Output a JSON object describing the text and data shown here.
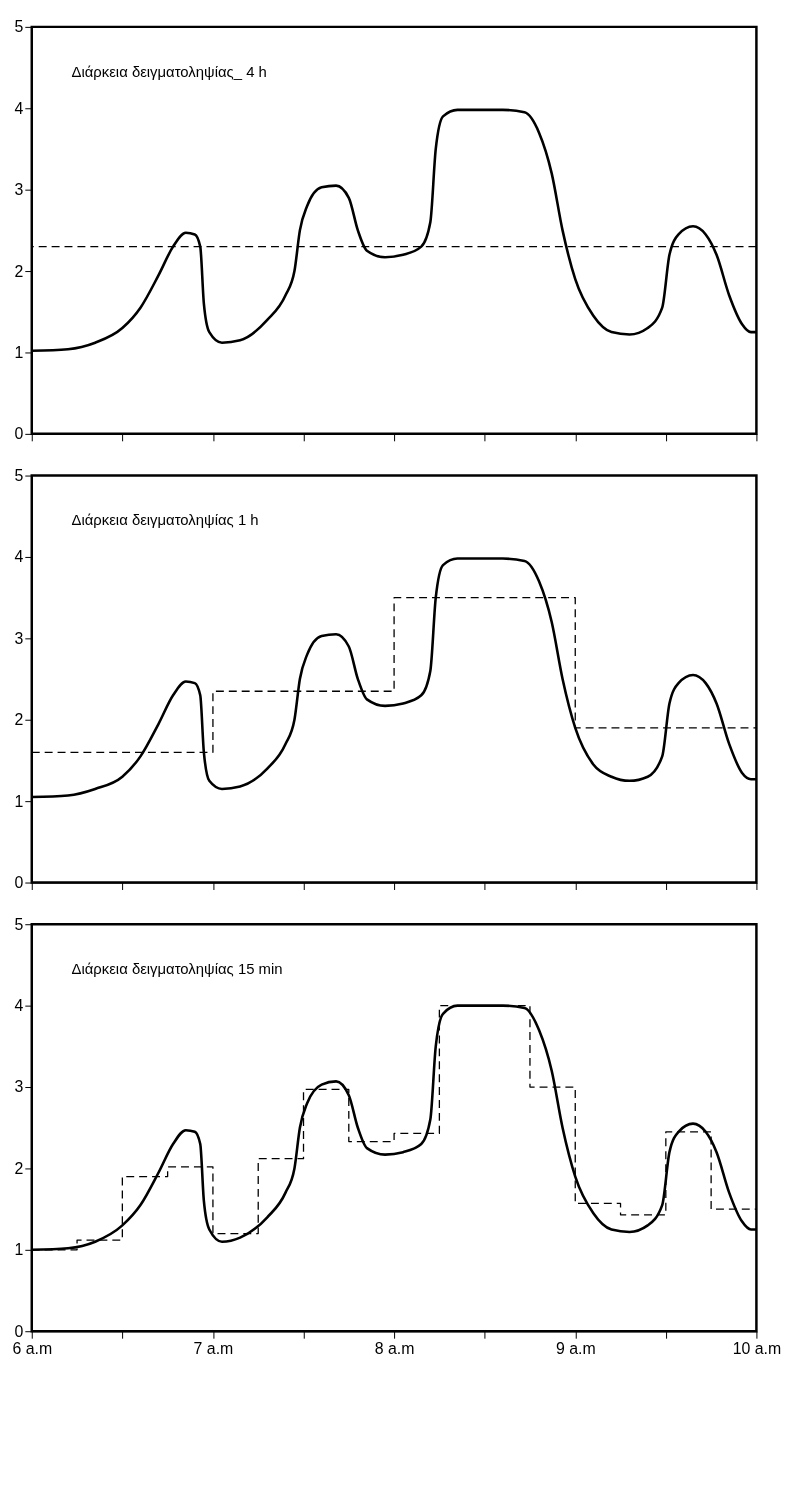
{
  "chart_data": [
    {
      "type": "line",
      "annotations": [
        "Διάρκεια  δειγματοληψίας_ 4 h"
      ],
      "xlim": [
        6,
        10
      ],
      "ylim": [
        0,
        5
      ],
      "yticks": [
        0,
        1,
        2,
        3,
        4,
        5
      ],
      "xticks": [
        {
          "value": 6,
          "label": null
        },
        {
          "value": 6.5,
          "label": null
        },
        {
          "value": 7,
          "label": null
        },
        {
          "value": 7.5,
          "label": null
        },
        {
          "value": 8,
          "label": null
        },
        {
          "value": 8.5,
          "label": null
        },
        {
          "value": 9,
          "label": null
        },
        {
          "value": 9.5,
          "label": null
        },
        {
          "value": 10,
          "label": null
        }
      ],
      "tick_labels": "y",
      "grid": false,
      "ref_lines": [
        {
          "axis": "y",
          "value": 2.3,
          "label": null,
          "color": "#000000",
          "line_style": "dashed"
        }
      ],
      "series": [
        {
          "type": "line",
          "color": "#000000",
          "line_style": "solid",
          "x": [
            6.0,
            6.2,
            6.35,
            6.5,
            6.6,
            6.7,
            6.78,
            6.85,
            6.9,
            6.93,
            6.95,
            6.98,
            7.05,
            7.15,
            7.3,
            7.4,
            7.45,
            7.48,
            7.52,
            7.6,
            7.68,
            7.75,
            7.8,
            7.85,
            7.95,
            8.05,
            8.15,
            8.2,
            8.23,
            8.27,
            8.35,
            8.6,
            8.72,
            8.8,
            8.87,
            8.93,
            9.0,
            9.1,
            9.2,
            9.3,
            9.4,
            9.48,
            9.52,
            9.57,
            9.65,
            9.72,
            9.78,
            9.85,
            9.92,
            9.97,
            10.0
          ],
          "values": [
            1.02,
            1.04,
            1.12,
            1.3,
            1.55,
            1.95,
            2.3,
            2.47,
            2.45,
            2.3,
            1.6,
            1.25,
            1.12,
            1.15,
            1.4,
            1.7,
            2.0,
            2.5,
            2.8,
            3.03,
            3.05,
            2.9,
            2.5,
            2.25,
            2.17,
            2.2,
            2.3,
            2.6,
            3.5,
            3.9,
            3.98,
            3.98,
            3.95,
            3.7,
            3.2,
            2.5,
            1.9,
            1.45,
            1.25,
            1.22,
            1.3,
            1.55,
            2.2,
            2.45,
            2.55,
            2.45,
            2.2,
            1.7,
            1.35,
            1.25,
            1.25
          ]
        }
      ]
    },
    {
      "type": "line",
      "annotations": [
        "Διάρκεια  δειγματοληψίας  1 h"
      ],
      "xlim": [
        6,
        10
      ],
      "ylim": [
        0,
        5
      ],
      "yticks": [
        0,
        1,
        2,
        3,
        4,
        5
      ],
      "xticks": [
        {
          "value": 6,
          "label": null
        },
        {
          "value": 6.5,
          "label": null
        },
        {
          "value": 7,
          "label": null
        },
        {
          "value": 7.5,
          "label": null
        },
        {
          "value": 8,
          "label": null
        },
        {
          "value": 8.5,
          "label": null
        },
        {
          "value": 9,
          "label": null
        },
        {
          "value": 9.5,
          "label": null
        },
        {
          "value": 10,
          "label": null
        }
      ],
      "tick_labels": "y",
      "grid": false,
      "series": [
        {
          "type": "line",
          "color": "#000000",
          "line_style": "solid",
          "x": [
            6.0,
            6.2,
            6.35,
            6.5,
            6.6,
            6.7,
            6.78,
            6.85,
            6.9,
            6.93,
            6.95,
            6.98,
            7.05,
            7.15,
            7.3,
            7.4,
            7.45,
            7.48,
            7.52,
            7.6,
            7.68,
            7.75,
            7.8,
            7.85,
            7.95,
            8.05,
            8.15,
            8.2,
            8.23,
            8.27,
            8.35,
            8.6,
            8.72,
            8.8,
            8.87,
            8.93,
            9.0,
            9.1,
            9.2,
            9.3,
            9.4,
            9.48,
            9.52,
            9.57,
            9.65,
            9.72,
            9.78,
            9.85,
            9.92,
            9.97,
            10.0
          ],
          "values": [
            1.05,
            1.07,
            1.15,
            1.3,
            1.55,
            1.95,
            2.3,
            2.47,
            2.45,
            2.3,
            1.6,
            1.25,
            1.15,
            1.18,
            1.4,
            1.7,
            2.0,
            2.5,
            2.8,
            3.03,
            3.05,
            2.9,
            2.5,
            2.25,
            2.17,
            2.2,
            2.3,
            2.6,
            3.5,
            3.9,
            3.98,
            3.98,
            3.95,
            3.7,
            3.2,
            2.5,
            1.9,
            1.45,
            1.3,
            1.25,
            1.3,
            1.55,
            2.2,
            2.45,
            2.55,
            2.45,
            2.2,
            1.7,
            1.35,
            1.27,
            1.27
          ]
        },
        {
          "type": "step",
          "color": "#000000",
          "line_style": "dashed",
          "x": [
            6,
            7,
            8,
            9,
            10
          ],
          "values": [
            1.6,
            2.35,
            3.5,
            1.9,
            1.9
          ]
        }
      ]
    },
    {
      "type": "line",
      "annotations": [
        "Διάρκεια  δειγματοληψίας  15  min"
      ],
      "xlim": [
        6,
        10
      ],
      "ylim": [
        0,
        5
      ],
      "yticks": [
        0,
        1,
        2,
        3,
        4,
        5
      ],
      "xticks": [
        {
          "value": 6,
          "label": "6 a.m"
        },
        {
          "value": 6.5,
          "label": null
        },
        {
          "value": 7,
          "label": "7 a.m"
        },
        {
          "value": 7.5,
          "label": null
        },
        {
          "value": 8,
          "label": "8 a.m"
        },
        {
          "value": 8.5,
          "label": null
        },
        {
          "value": 9,
          "label": "9 a.m"
        },
        {
          "value": 9.5,
          "label": null
        },
        {
          "value": 10,
          "label": "10 a.m"
        }
      ],
      "grid": false,
      "series": [
        {
          "type": "line",
          "color": "#000000",
          "line_style": "solid",
          "x": [
            6.0,
            6.2,
            6.35,
            6.5,
            6.6,
            6.7,
            6.78,
            6.85,
            6.9,
            6.93,
            6.95,
            6.98,
            7.05,
            7.15,
            7.3,
            7.4,
            7.45,
            7.48,
            7.52,
            7.6,
            7.68,
            7.75,
            7.8,
            7.85,
            7.95,
            8.05,
            8.15,
            8.2,
            8.23,
            8.27,
            8.35,
            8.6,
            8.72,
            8.8,
            8.87,
            8.93,
            9.0,
            9.1,
            9.2,
            9.3,
            9.4,
            9.48,
            9.52,
            9.57,
            9.65,
            9.72,
            9.78,
            9.85,
            9.92,
            9.97,
            10.0
          ],
          "values": [
            1.0,
            1.02,
            1.1,
            1.3,
            1.55,
            1.95,
            2.3,
            2.47,
            2.45,
            2.3,
            1.6,
            1.25,
            1.1,
            1.15,
            1.4,
            1.7,
            2.0,
            2.5,
            2.8,
            3.03,
            3.07,
            2.9,
            2.5,
            2.25,
            2.17,
            2.2,
            2.3,
            2.6,
            3.5,
            3.9,
            4.0,
            4.0,
            3.97,
            3.7,
            3.2,
            2.5,
            1.9,
            1.45,
            1.25,
            1.22,
            1.3,
            1.55,
            2.2,
            2.45,
            2.55,
            2.45,
            2.2,
            1.7,
            1.35,
            1.25,
            1.25
          ]
        },
        {
          "type": "step",
          "color": "#000000",
          "line_style": "dashed",
          "x": [
            6,
            6.25,
            6.5,
            6.75,
            7,
            7.25,
            7.5,
            7.75,
            8,
            8.25,
            8.5,
            8.75,
            9,
            9.25,
            9.5,
            9.75,
            10
          ],
          "values": [
            1.0,
            1.12,
            1.9,
            2.02,
            1.2,
            2.12,
            2.97,
            2.33,
            2.43,
            4.0,
            4.0,
            3.0,
            1.57,
            1.43,
            2.45,
            1.5,
            1.5
          ]
        }
      ]
    }
  ]
}
